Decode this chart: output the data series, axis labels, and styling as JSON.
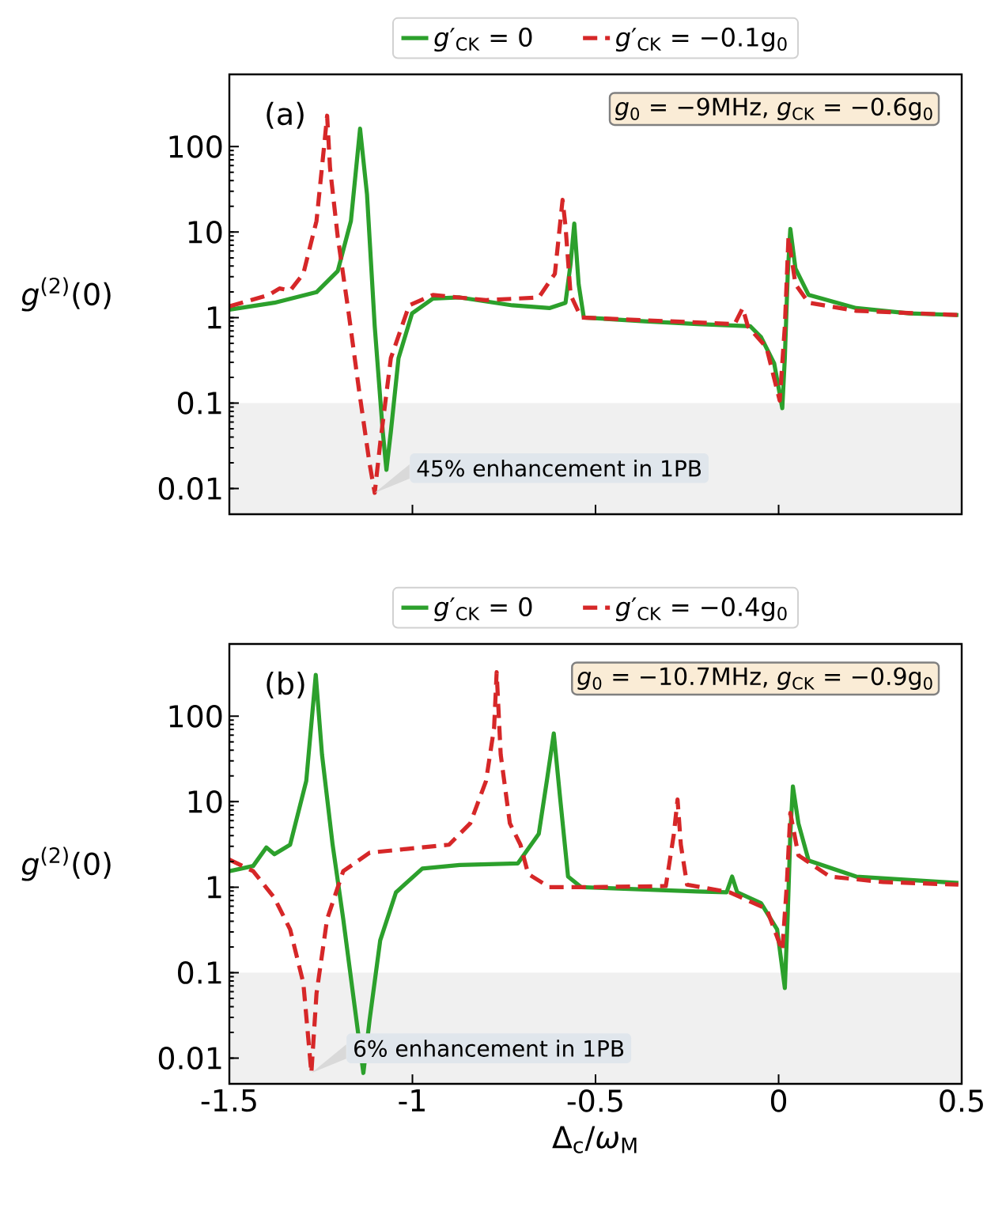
{
  "chart_data": [
    {
      "type": "line",
      "ylabel": "*g*$^{(2)}$(0)",
      "log": true,
      "xlim": [
        -1.5,
        0.5
      ],
      "xticks": [
        -1.5,
        -1,
        -0.5,
        0,
        0.5
      ],
      "ylim": [
        0.005,
        700
      ],
      "yticks": [
        0.01,
        0.1,
        1,
        10,
        100
      ],
      "tick_labels": "y",
      "legend": "top",
      "bands": [
        {
          "axis": "y",
          "from": 0.005,
          "to": 0.1,
          "color": "#f0f0f0"
        }
      ],
      "annotations": [
        "(a)",
        "*g*$_{0}$ = −9MHz, *g*$_{CK}$ = −0.6g$_{0}$",
        {
          "text": "45% enhancement in 1PB",
          "x": -1.103,
          "y": 0.0089
        }
      ],
      "series": [
        {
          "name": "*g*′$_{CK}$ = 0",
          "color": "#2ca02c",
          "line_style": "solid",
          "x": [
            -1.5,
            -1.377,
            -1.262,
            -1.204,
            -1.168,
            -1.143,
            -1.124,
            -1.103,
            -1.081,
            -1.071,
            -1.059,
            -1.038,
            -1.001,
            -0.944,
            -0.871,
            -0.727,
            -0.626,
            -0.582,
            -0.568,
            -0.558,
            -0.546,
            -0.532,
            -0.366,
            -0.221,
            -0.077,
            -0.048,
            -0.012,
            0.01,
            0.017,
            0.025,
            0.032,
            0.046,
            0.082,
            0.212,
            0.357,
            0.491
          ],
          "values": [
            1.24,
            1.49,
            1.98,
            3.5,
            13.5,
            162,
            27.4,
            0.79,
            0.046,
            0.0165,
            0.046,
            0.335,
            1.12,
            1.67,
            1.72,
            1.39,
            1.29,
            1.49,
            4.3,
            12.6,
            2.45,
            1.0,
            0.905,
            0.84,
            0.79,
            0.59,
            0.29,
            0.087,
            0.335,
            3.25,
            10.9,
            3.75,
            1.84,
            1.29,
            1.12,
            1.07
          ]
        },
        {
          "name": "*g*′$_{CK}$ = −0.1g$_{0}$",
          "color": "#d62728",
          "line_style": "dashed",
          "x": [
            -1.5,
            -1.392,
            -1.363,
            -1.334,
            -1.298,
            -1.262,
            -1.24,
            -1.233,
            -1.225,
            -1.204,
            -1.175,
            -1.146,
            -1.117,
            -1.103,
            -1.088,
            -1.059,
            -1.009,
            -0.944,
            -0.799,
            -0.655,
            -0.611,
            -0.59,
            -0.582,
            -0.568,
            -0.539,
            -0.366,
            -0.12,
            -0.098,
            -0.084,
            -0.033,
            0.003,
            0.017,
            0.027,
            0.046,
            0.082,
            0.212,
            0.491
          ],
          "values": [
            1.35,
            1.84,
            2.19,
            2.07,
            3.25,
            13.5,
            114,
            230,
            56,
            8.8,
            1.2,
            0.143,
            0.0195,
            0.0089,
            0.034,
            0.335,
            1.39,
            1.84,
            1.6,
            1.72,
            3.25,
            23.8,
            11.7,
            1.84,
            1.0,
            0.93,
            0.84,
            1.29,
            0.79,
            0.445,
            0.107,
            0.79,
            8.8,
            2.45,
            1.49,
            1.2,
            1.07
          ]
        }
      ]
    },
    {
      "type": "line",
      "xlabel": "Δ$_{c}$/*ω*$_{M}$",
      "ylabel": "*g*$^{(2)}$(0)",
      "log": true,
      "xlim": [
        -1.5,
        0.5
      ],
      "xticks": [
        -1.5,
        -1,
        -0.5,
        0,
        0.5
      ],
      "ylim": [
        0.005,
        700
      ],
      "yticks": [
        0.01,
        0.1,
        1,
        10,
        100
      ],
      "legend": "top",
      "bands": [
        {
          "axis": "y",
          "from": 0.005,
          "to": 0.1,
          "color": "#f0f0f0"
        }
      ],
      "annotations": [
        "(b)",
        "*g*$_{0}$ = −10.7MHz, *g*$_{CK}$ = −0.9g$_{0}$",
        {
          "text": "6% enhancement in 1PB",
          "x": -1.276,
          "y": 0.0067
        }
      ],
      "series": [
        {
          "name": "*g*′$_{CK}$ = 0",
          "color": "#2ca02c",
          "line_style": "solid",
          "x": [
            -1.5,
            -1.435,
            -1.399,
            -1.377,
            -1.334,
            -1.29,
            -1.264,
            -1.247,
            -1.218,
            -1.189,
            -1.153,
            -1.134,
            -1.117,
            -1.088,
            -1.045,
            -0.973,
            -0.871,
            -0.712,
            -0.655,
            -0.633,
            -0.614,
            -0.597,
            -0.575,
            -0.539,
            -0.221,
            -0.142,
            -0.127,
            -0.113,
            -0.048,
            -0.004,
            0.017,
            0.025,
            0.032,
            0.039,
            0.054,
            0.082,
            0.212,
            0.491
          ],
          "values": [
            1.54,
            1.77,
            2.92,
            2.43,
            3.14,
            17.5,
            305,
            35.7,
            3.14,
            0.424,
            0.028,
            0.0067,
            0.028,
            0.239,
            0.87,
            1.65,
            1.82,
            1.9,
            4.2,
            17.5,
            63,
            11.4,
            1.33,
            1.0,
            0.89,
            0.87,
            1.33,
            0.87,
            0.65,
            0.32,
            0.066,
            0.49,
            4.2,
            15.1,
            5.6,
            2.05,
            1.33,
            1.12
          ]
        },
        {
          "name": "*g*′$_{CK}$ = −0.4g$_{0}$",
          "color": "#d62728",
          "line_style": "dashed",
          "x": [
            -1.5,
            -1.435,
            -1.377,
            -1.334,
            -1.298,
            -1.276,
            -1.262,
            -1.233,
            -1.189,
            -1.117,
            -1.016,
            -0.9,
            -0.842,
            -0.799,
            -0.777,
            -0.77,
            -0.759,
            -0.734,
            -0.705,
            -0.684,
            -0.626,
            -0.51,
            -0.308,
            -0.286,
            -0.276,
            -0.267,
            -0.25,
            -0.134,
            -0.033,
            0.01,
            0.022,
            0.032,
            0.054,
            0.14,
            0.285,
            0.491
          ],
          "values": [
            2.1,
            1.54,
            0.75,
            0.32,
            0.076,
            0.0067,
            0.057,
            0.424,
            1.54,
            2.53,
            2.8,
            3.14,
            5.6,
            17.5,
            73,
            328,
            35.7,
            5.6,
            3.14,
            1.43,
            1.0,
            1.0,
            1.03,
            4.2,
            10.6,
            3.14,
            1.07,
            0.87,
            0.56,
            0.18,
            1.0,
            7.4,
            2.36,
            1.33,
            1.15,
            1.07
          ]
        }
      ]
    }
  ]
}
